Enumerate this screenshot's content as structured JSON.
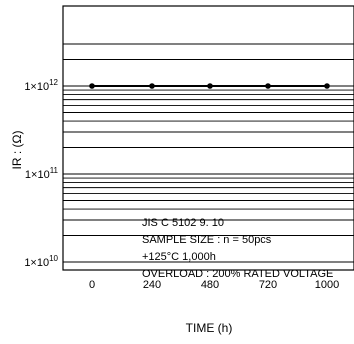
{
  "chart_data": {
    "type": "line",
    "title": "",
    "xlabel": "TIME   (h)",
    "ylabel": "IR : (Ω)",
    "x_categories": [
      "0",
      "240",
      "480",
      "720",
      "1000"
    ],
    "y_scale": "log",
    "ylim": [
      10000000000.0,
      3000000000000.0
    ],
    "y_tick_values": [
      10000000000.0,
      100000000000.0,
      1000000000000.0
    ],
    "y_tick_labels": [
      {
        "base": "1×10",
        "exp": "10"
      },
      {
        "base": "1×10",
        "exp": "11"
      },
      {
        "base": "1×10",
        "exp": "12"
      }
    ],
    "grid": "horizontal log minor",
    "series": [
      {
        "x": [
          0,
          240,
          480,
          720,
          1000
        ],
        "y": [
          1000000000000.0,
          1000000000000.0,
          1000000000000.0,
          1000000000000.0,
          1000000000000.0
        ]
      }
    ],
    "annotations": [
      "JIS C 5102 9. 10",
      "SAMPLE SIZE : n = 50pcs",
      "+125°C 1,000h",
      "OVERLOAD : 200% RATED VOLTAGE"
    ]
  }
}
